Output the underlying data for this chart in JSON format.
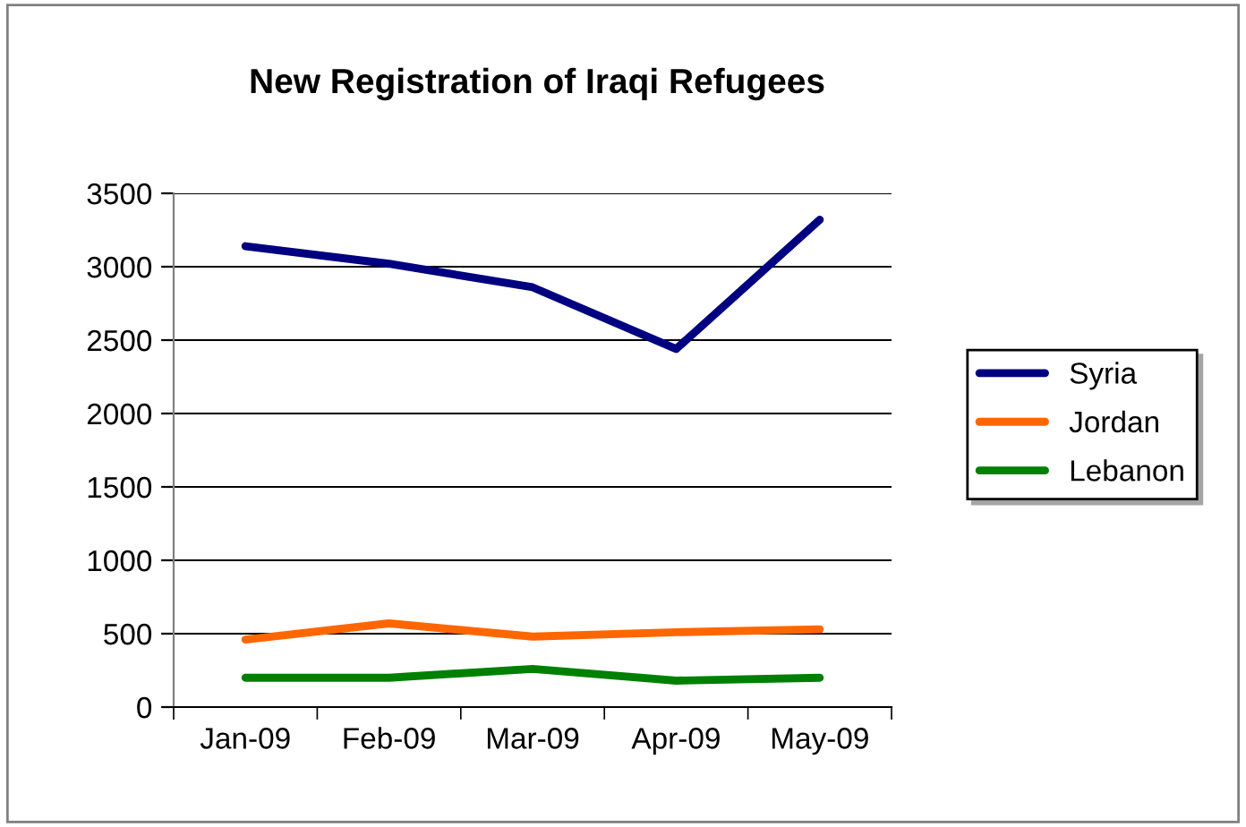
{
  "chart_data": {
    "type": "line",
    "title": "New Registration of Iraqi Refugees",
    "categories": [
      "Jan-09",
      "Feb-09",
      "Mar-09",
      "Apr-09",
      "May-09"
    ],
    "series": [
      {
        "name": "Syria",
        "color": "#000080",
        "values": [
          3140,
          3020,
          2860,
          2440,
          3320
        ]
      },
      {
        "name": "Jordan",
        "color": "#ff6600",
        "values": [
          460,
          570,
          480,
          510,
          530
        ]
      },
      {
        "name": "Lebanon",
        "color": "#008000",
        "values": [
          200,
          200,
          260,
          180,
          200
        ]
      }
    ],
    "ylim": [
      0,
      3500
    ],
    "yticks": [
      0,
      500,
      1000,
      1500,
      2000,
      2500,
      3000,
      3500
    ],
    "grid": "y",
    "legend": "right",
    "marker": "none",
    "line_style": "solid"
  }
}
